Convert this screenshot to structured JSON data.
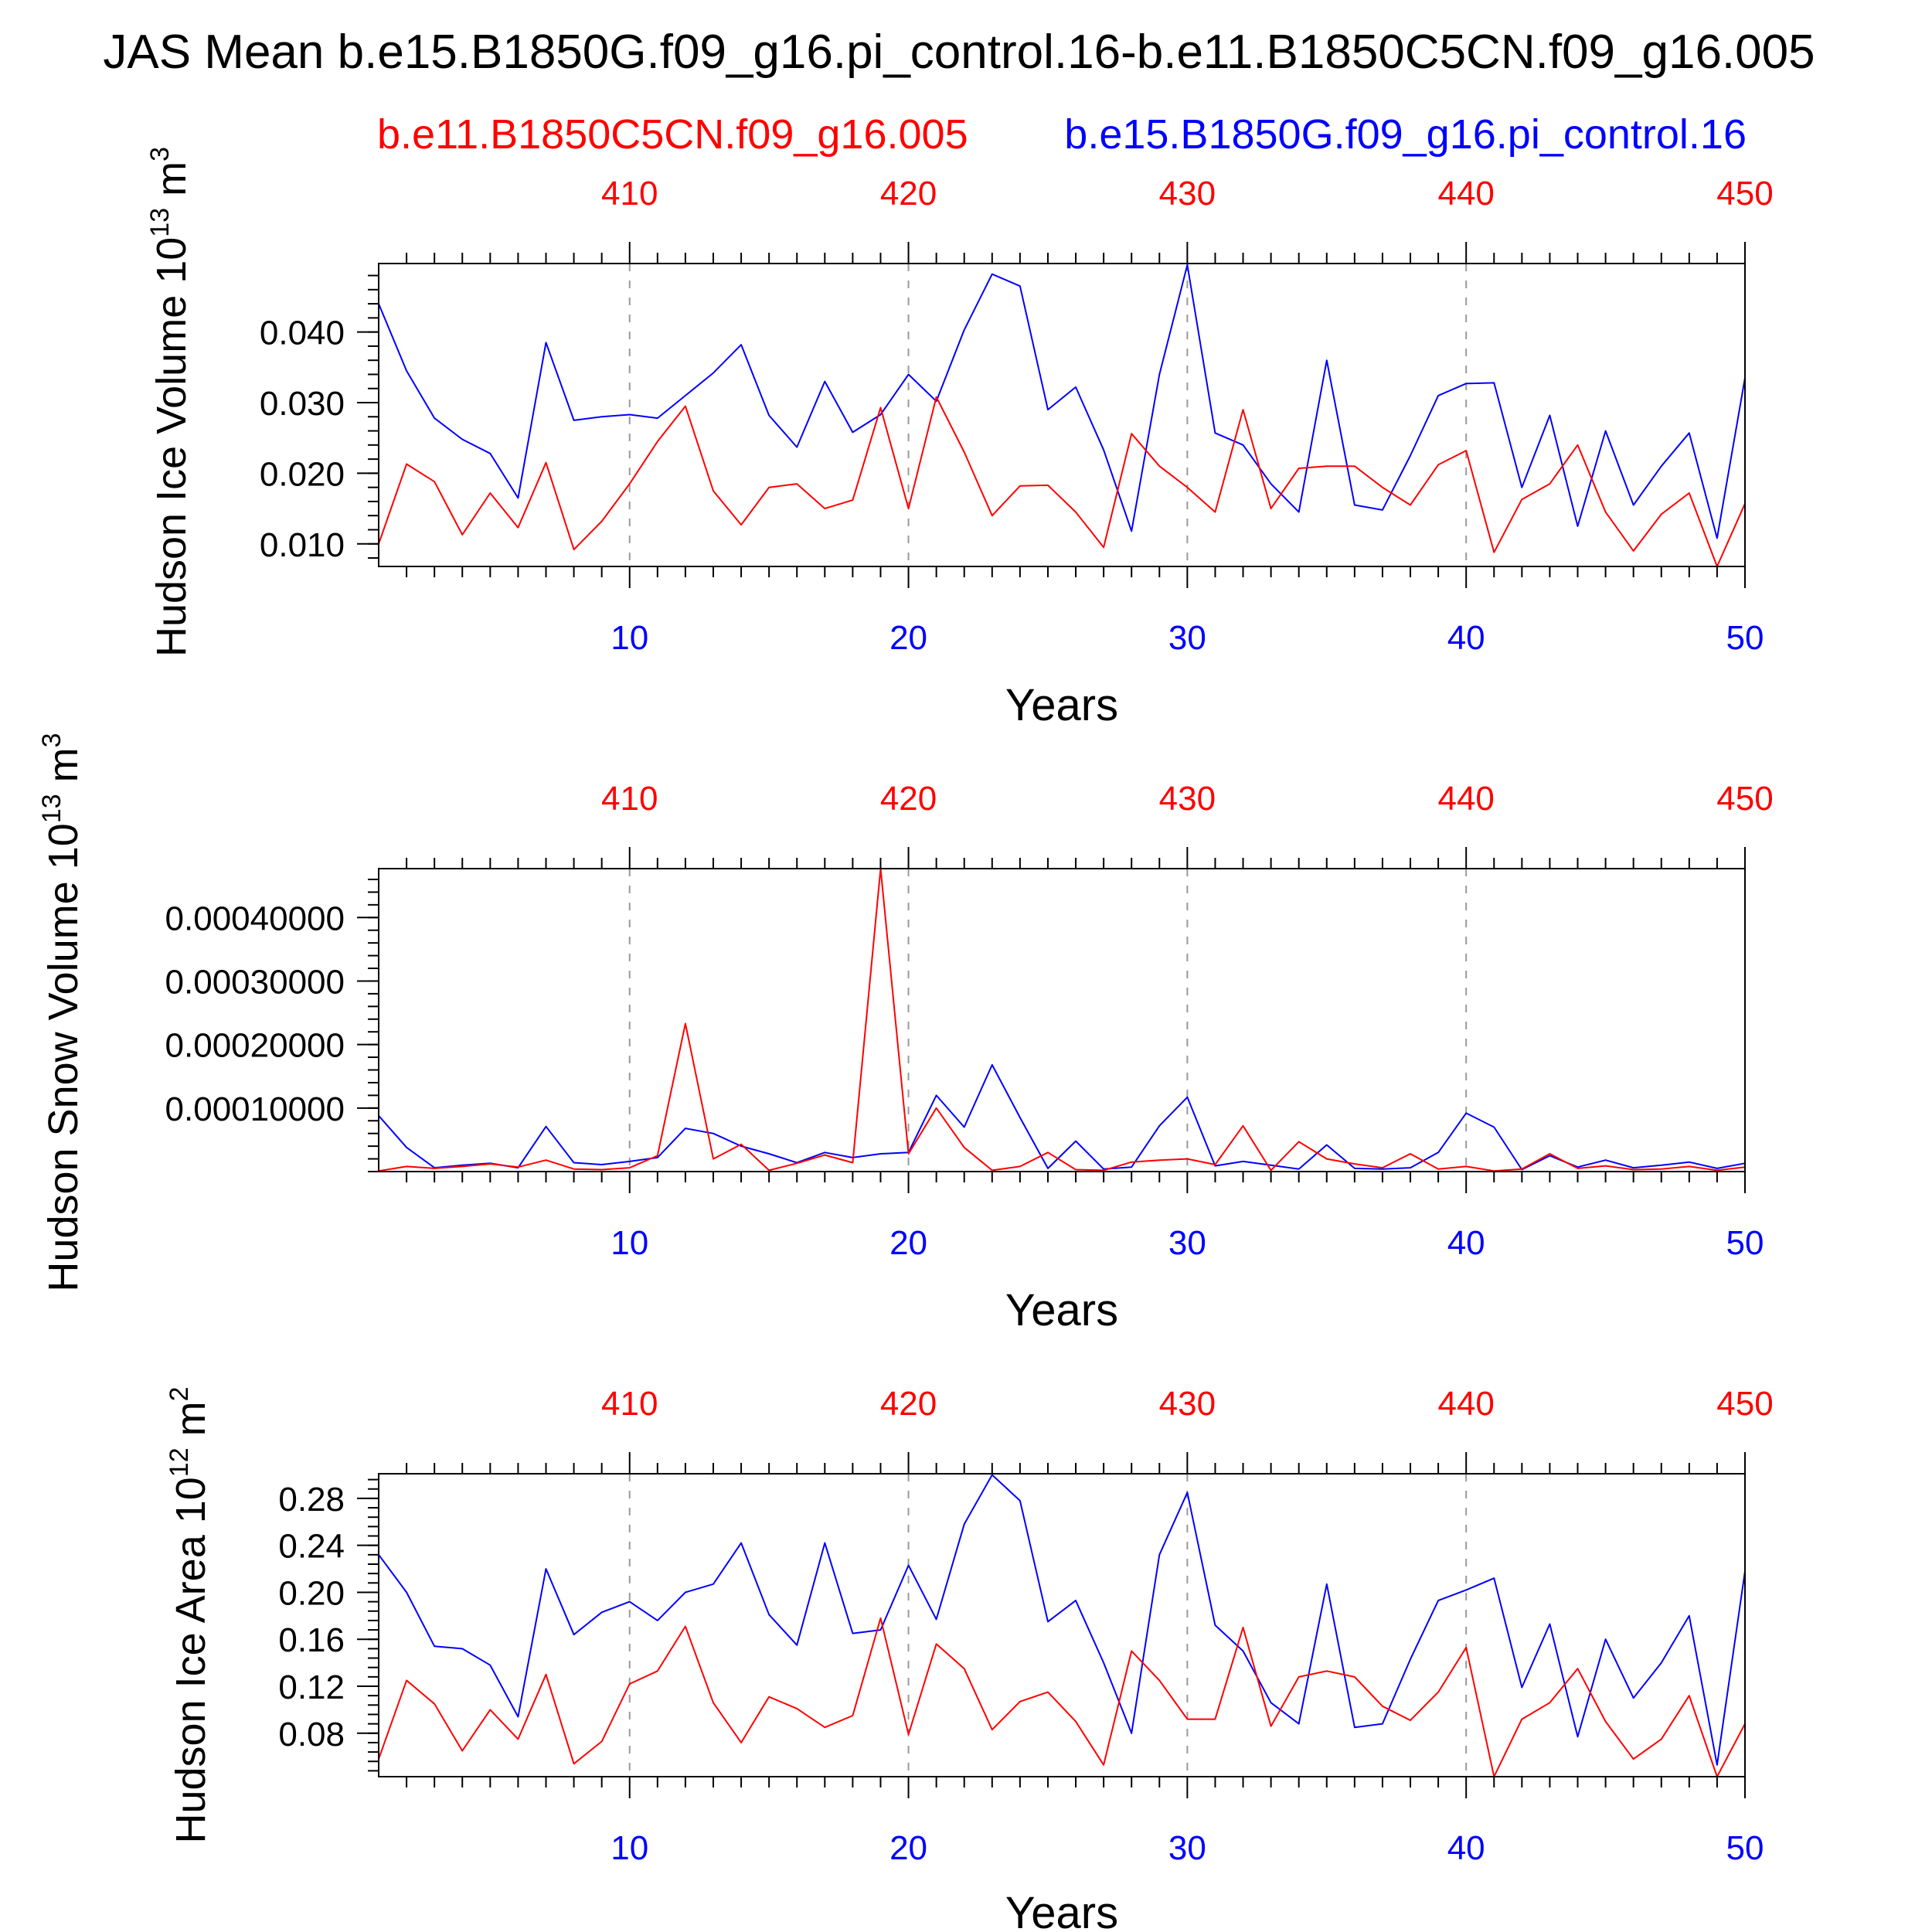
{
  "colors": {
    "red": "#ff0000",
    "blue": "#0000ff",
    "black": "#000000",
    "grid": "#999999"
  },
  "figure": {
    "title": "JAS Mean b.e15.B1850G.f09_g16.pi_control.16-b.e11.B1850C5CN.f09_g16.005",
    "legend_red": "b.e11.B1850C5CN.f09_g16.005",
    "legend_blue": "b.e15.B1850G.f09_g16.pi_control.16"
  },
  "chart_data": [
    {
      "type": "line",
      "ylabel_main": "Hudson Ice Volume 10",
      "ylabel_exp": "13",
      "ylabel_unit": "m",
      "ylabel_unit_exp": "3",
      "xlabel": "Years",
      "xlim": [
        1,
        50
      ],
      "ylim": [
        0.0068,
        0.0497
      ],
      "yticks": [
        0.01,
        0.02,
        0.03,
        0.04
      ],
      "ytick_labels": [
        "0.010",
        "0.020",
        "0.030",
        "0.040"
      ],
      "x_bottom_ticks": [
        10,
        20,
        30,
        40,
        50
      ],
      "x_bottom_labels": [
        "10",
        "20",
        "30",
        "40",
        "50"
      ],
      "x_top_labels": [
        "410",
        "420",
        "430",
        "440",
        "450"
      ],
      "series": [
        {
          "name": "b.e15.B1850G.f09_g16.pi_control.16",
          "color": "blue",
          "values": [
            0.044,
            0.0345,
            0.0278,
            0.0248,
            0.0228,
            0.0165,
            0.0385,
            0.0275,
            0.028,
            0.0283,
            0.0278,
            0.031,
            0.0342,
            0.0382,
            0.0282,
            0.0237,
            0.033,
            0.0258,
            0.0283,
            0.034,
            0.0302,
            0.0403,
            0.0482,
            0.0465,
            0.029,
            0.0322,
            0.0233,
            0.0118,
            0.034,
            0.0495,
            0.0257,
            0.024,
            0.0185,
            0.0145,
            0.036,
            0.0155,
            0.0148,
            0.0225,
            0.031,
            0.0327,
            0.0328,
            0.018,
            0.0282,
            0.0125,
            0.026,
            0.0155,
            0.021,
            0.0257,
            0.0108,
            0.0335
          ]
        },
        {
          "name": "b.e11.B1850C5CN.f09_g16.005",
          "color": "red",
          "values": [
            0.01,
            0.0213,
            0.0188,
            0.0113,
            0.0172,
            0.0123,
            0.0215,
            0.0092,
            0.0132,
            0.0185,
            0.0245,
            0.0295,
            0.0175,
            0.0127,
            0.018,
            0.0185,
            0.015,
            0.0162,
            0.0293,
            0.015,
            0.0308,
            0.023,
            0.014,
            0.0182,
            0.0183,
            0.0145,
            0.0095,
            0.0256,
            0.021,
            0.018,
            0.0145,
            0.029,
            0.015,
            0.0207,
            0.021,
            0.021,
            0.018,
            0.0155,
            0.0212,
            0.0232,
            0.0088,
            0.0163,
            0.0185,
            0.024,
            0.0145,
            0.009,
            0.0142,
            0.0172,
            0.0068,
            0.0157
          ]
        }
      ]
    },
    {
      "type": "line",
      "ylabel_main": "Hudson Snow Volume 10",
      "ylabel_exp": "13",
      "ylabel_unit": "m",
      "ylabel_unit_exp": "3",
      "xlabel": "Years",
      "xlim": [
        1,
        50
      ],
      "ylim": [
        0,
        0.000477
      ],
      "yticks": [
        0.0001,
        0.0002,
        0.0003,
        0.0004
      ],
      "ytick_labels": [
        "0.00010000",
        "0.00020000",
        "0.00030000",
        "0.00040000"
      ],
      "x_bottom_ticks": [
        10,
        20,
        30,
        40,
        50
      ],
      "x_bottom_labels": [
        "10",
        "20",
        "30",
        "40",
        "50"
      ],
      "x_top_labels": [
        "410",
        "420",
        "430",
        "440",
        "450"
      ],
      "series": [
        {
          "name": "b.e15.B1850G.f09_g16.pi_control.16",
          "color": "blue",
          "values": [
            8.8e-05,
            3.8e-05,
            6e-06,
            1e-05,
            1.3e-05,
            6e-06,
            7.1e-05,
            1.4e-05,
            1.1e-05,
            1.6e-05,
            2.2e-05,
            6.8e-05,
            6e-05,
            4e-05,
            2.8e-05,
            1.4e-05,
            3e-05,
            2.2e-05,
            2.8e-05,
            3e-05,
            0.00012,
            7e-05,
            0.000168,
            8.5e-05,
            5e-06,
            4.8e-05,
            4e-06,
            7e-06,
            7.2e-05,
            0.000117,
            9e-06,
            1.6e-05,
            1e-05,
            4e-06,
            4.2e-05,
            5e-06,
            4e-06,
            6e-06,
            3e-05,
            9.2e-05,
            7e-05,
            3e-06,
            2.5e-05,
            7e-06,
            1.8e-05,
            6e-06,
            1e-05,
            1.5e-05,
            5e-06,
            1.3e-05
          ]
        },
        {
          "name": "b.e11.B1850C5CN.f09_g16.005",
          "color": "red",
          "values": [
            1e-06,
            8e-06,
            5e-06,
            8e-06,
            1.2e-05,
            7e-06,
            1.8e-05,
            4e-06,
            3e-06,
            6e-06,
            2.5e-05,
            0.000233,
            2e-05,
            4.3e-05,
            2e-06,
            1.3e-05,
            2.6e-05,
            1.4e-05,
            0.000477,
            2.8e-05,
            0.0001,
            3.8e-05,
            2e-06,
            8e-06,
            3e-05,
            3e-06,
            2e-06,
            1.5e-05,
            1.8e-05,
            2e-05,
            1.1e-05,
            7.2e-05,
            2e-06,
            4.7e-05,
            2e-05,
            1.2e-05,
            6e-06,
            2.8e-05,
            4e-06,
            8e-06,
            1e-06,
            4e-06,
            2.8e-05,
            5e-06,
            9e-06,
            3e-06,
            4e-06,
            8e-06,
            2e-06,
            7e-06
          ]
        }
      ]
    },
    {
      "type": "line",
      "ylabel_main": "Hudson Ice Area 10",
      "ylabel_exp": "12",
      "ylabel_unit": "m",
      "ylabel_unit_exp": "2",
      "xlabel": "Years",
      "xlim": [
        1,
        50
      ],
      "ylim": [
        0.043,
        0.301
      ],
      "yticks": [
        0.08,
        0.12,
        0.16,
        0.2,
        0.24,
        0.28
      ],
      "ytick_labels": [
        "0.08",
        "0.12",
        "0.16",
        "0.20",
        "0.24",
        "0.28"
      ],
      "x_bottom_ticks": [
        10,
        20,
        30,
        40,
        50
      ],
      "x_bottom_labels": [
        "10",
        "20",
        "30",
        "40",
        "50"
      ],
      "x_top_labels": [
        "410",
        "420",
        "430",
        "440",
        "450"
      ],
      "series": [
        {
          "name": "b.e15.B1850G.f09_g16.pi_control.16",
          "color": "blue",
          "values": [
            0.232,
            0.2,
            0.154,
            0.152,
            0.138,
            0.094,
            0.22,
            0.164,
            0.183,
            0.192,
            0.176,
            0.2,
            0.207,
            0.242,
            0.181,
            0.155,
            0.242,
            0.165,
            0.168,
            0.223,
            0.177,
            0.258,
            0.3,
            0.278,
            0.175,
            0.193,
            0.14,
            0.08,
            0.232,
            0.285,
            0.172,
            0.15,
            0.106,
            0.088,
            0.207,
            0.085,
            0.088,
            0.143,
            0.193,
            0.202,
            0.212,
            0.119,
            0.173,
            0.077,
            0.16,
            0.11,
            0.14,
            0.18,
            0.053,
            0.218
          ]
        },
        {
          "name": "b.e11.B1850C5CN.f09_g16.005",
          "color": "red",
          "values": [
            0.058,
            0.125,
            0.105,
            0.065,
            0.1,
            0.075,
            0.13,
            0.054,
            0.073,
            0.122,
            0.133,
            0.171,
            0.106,
            0.072,
            0.111,
            0.101,
            0.085,
            0.095,
            0.178,
            0.079,
            0.156,
            0.135,
            0.083,
            0.107,
            0.115,
            0.09,
            0.053,
            0.15,
            0.125,
            0.092,
            0.092,
            0.17,
            0.086,
            0.128,
            0.133,
            0.128,
            0.103,
            0.091,
            0.115,
            0.153,
            0.043,
            0.092,
            0.106,
            0.135,
            0.09,
            0.058,
            0.075,
            0.112,
            0.043,
            0.088
          ]
        }
      ]
    }
  ]
}
